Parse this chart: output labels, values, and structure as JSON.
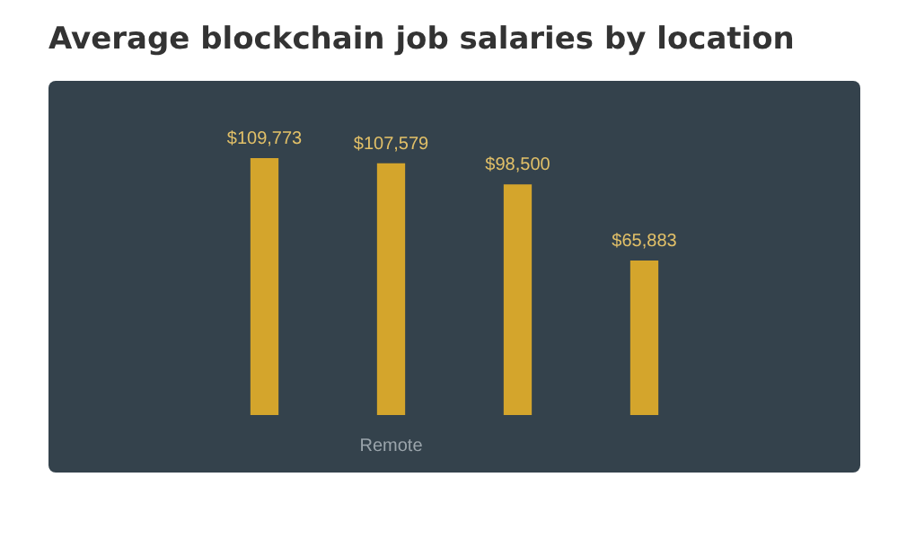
{
  "chart_data": {
    "type": "bar",
    "title": "Average blockchain job salaries by location",
    "categories": [
      null,
      "Remote",
      null,
      null
    ],
    "values": [
      109773,
      107579,
      98500,
      65883
    ],
    "value_labels": [
      "$109,773",
      "$107,579",
      "$98,500",
      "$65,883"
    ],
    "color": "#d4a52c",
    "grid": false,
    "legend": false
  }
}
